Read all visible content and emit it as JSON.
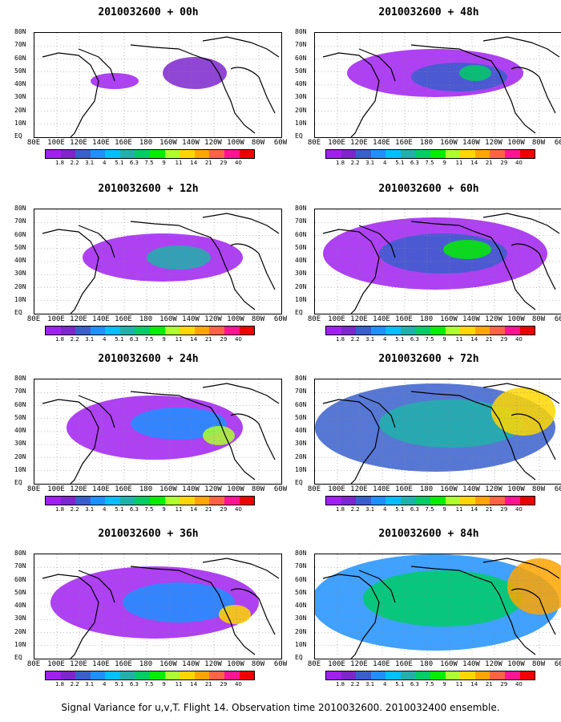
{
  "panels": [
    {
      "title": "2010032600 + 00h"
    },
    {
      "title": "2010032600 + 48h"
    },
    {
      "title": "2010032600 + 12h"
    },
    {
      "title": "2010032600 + 60h"
    },
    {
      "title": "2010032600 + 24h"
    },
    {
      "title": "2010032600 + 72h"
    },
    {
      "title": "2010032600 + 36h"
    },
    {
      "title": "2010032600 + 84h"
    }
  ],
  "lat_labels": [
    "80N",
    "70N",
    "60N",
    "50N",
    "40N",
    "30N",
    "20N",
    "10N",
    "EQ"
  ],
  "lon_labels": [
    "80E",
    "100E",
    "120E",
    "140E",
    "160E",
    "180",
    "160W",
    "140W",
    "120W",
    "100W",
    "80W",
    "60W"
  ],
  "colorbar": {
    "labels": [
      "1.8",
      "2.2",
      "3.1",
      "4",
      "5.1",
      "6.3",
      "7.5",
      "9",
      "11",
      "14",
      "21",
      "29",
      "40"
    ],
    "colors": [
      "#a020f0",
      "#7d26cd",
      "#3a5fcd",
      "#1e90ff",
      "#00bfff",
      "#20b2aa",
      "#00cd66",
      "#00ee00",
      "#adff2f",
      "#ffd700",
      "#ffa500",
      "#ff6347",
      "#ff1493",
      "#ee0000"
    ]
  },
  "footer": "Signal Variance for u,v,T. Flight 14. Observation time 2010032600. 2010032400 ensemble."
}
